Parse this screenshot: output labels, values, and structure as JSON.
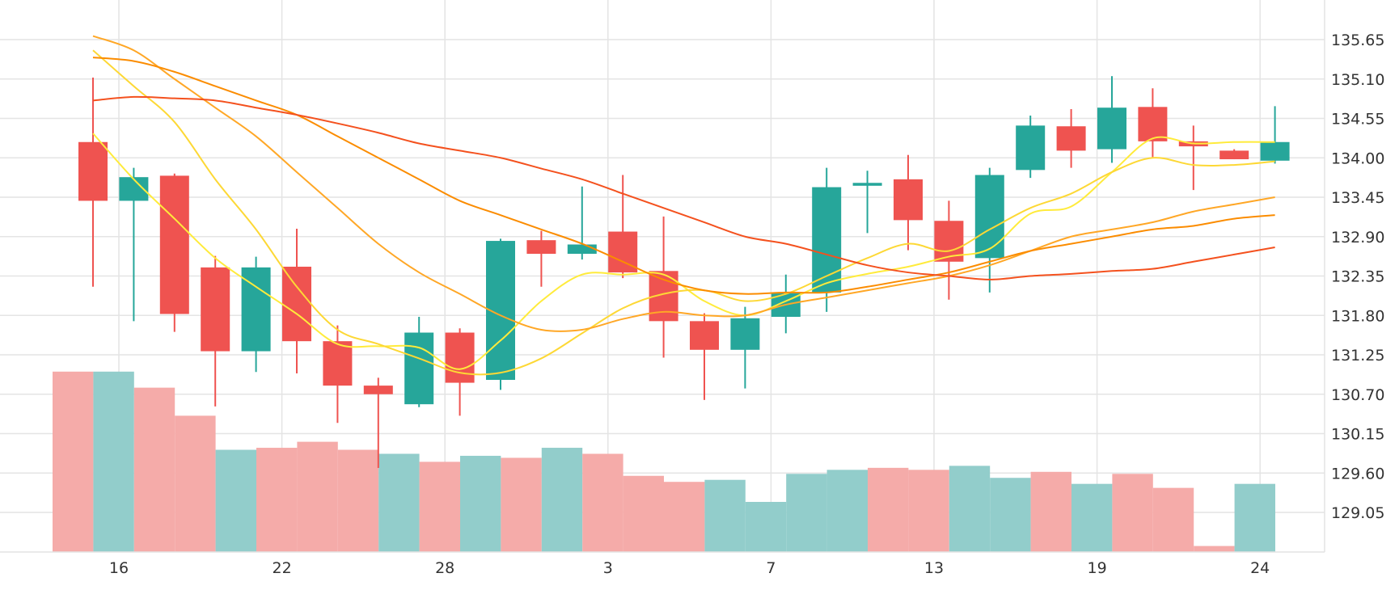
{
  "chart_data": {
    "type": "candlestick",
    "title": "",
    "xlabel": "",
    "ylabel": "",
    "ylim": [
      128.5,
      135.95
    ],
    "grid": true,
    "y_axis_side": "right",
    "y_ticks": [
      135.65,
      135.1,
      134.55,
      134.0,
      133.45,
      132.9,
      132.35,
      131.8,
      131.25,
      130.7,
      130.15,
      129.6,
      129.05
    ],
    "y_tick_labels": [
      "135.65",
      "135.10",
      "134.55",
      "134.00",
      "133.45",
      "132.90",
      "132.35",
      "131.80",
      "131.25",
      "130.70",
      "130.15",
      "129.60",
      "129.05"
    ],
    "x_tick_labels": [
      {
        "label": "16",
        "index": 1
      },
      {
        "label": "22",
        "index": 5
      },
      {
        "label": "28",
        "index": 9
      },
      {
        "label": "3",
        "index": 13
      },
      {
        "label": "7",
        "index": 17
      },
      {
        "label": "13",
        "index": 21
      },
      {
        "label": "19",
        "index": 25
      },
      {
        "label": "24",
        "index": 29
      }
    ],
    "colors": {
      "up": "#26a69a",
      "down": "#ef5350",
      "volume_up": "#92cdcb",
      "volume_down": "#f5aba9",
      "grid": "#e4e4e4"
    },
    "candles": [
      {
        "open": 134.22,
        "high": 135.12,
        "low": 132.2,
        "close": 133.4
      },
      {
        "open": 133.4,
        "high": 133.86,
        "low": 131.72,
        "close": 133.73
      },
      {
        "open": 133.75,
        "high": 133.78,
        "low": 131.57,
        "close": 131.82
      },
      {
        "open": 132.47,
        "high": 132.63,
        "low": 130.53,
        "close": 131.3
      },
      {
        "open": 131.3,
        "high": 132.62,
        "low": 131.01,
        "close": 132.47
      },
      {
        "open": 132.48,
        "high": 133.01,
        "low": 130.99,
        "close": 131.44
      },
      {
        "open": 131.44,
        "high": 131.66,
        "low": 130.3,
        "close": 130.82
      },
      {
        "open": 130.82,
        "high": 130.93,
        "low": 129.67,
        "close": 130.7
      },
      {
        "open": 130.56,
        "high": 131.78,
        "low": 130.52,
        "close": 131.56
      },
      {
        "open": 131.56,
        "high": 131.62,
        "low": 130.4,
        "close": 130.86
      },
      {
        "open": 130.9,
        "high": 132.87,
        "low": 130.76,
        "close": 132.84
      },
      {
        "open": 132.85,
        "high": 132.98,
        "low": 132.2,
        "close": 132.66
      },
      {
        "open": 132.66,
        "high": 133.6,
        "low": 132.58,
        "close": 132.79
      },
      {
        "open": 132.97,
        "high": 133.76,
        "low": 132.32,
        "close": 132.4
      },
      {
        "open": 132.42,
        "high": 133.18,
        "low": 131.21,
        "close": 131.72
      },
      {
        "open": 131.72,
        "high": 131.83,
        "low": 130.62,
        "close": 131.32
      },
      {
        "open": 131.32,
        "high": 131.92,
        "low": 130.78,
        "close": 131.76
      },
      {
        "open": 131.78,
        "high": 132.37,
        "low": 131.55,
        "close": 132.11
      },
      {
        "open": 132.12,
        "high": 133.86,
        "low": 131.85,
        "close": 133.59
      },
      {
        "open": 133.61,
        "high": 133.82,
        "low": 132.95,
        "close": 133.65
      },
      {
        "open": 133.7,
        "high": 134.04,
        "low": 132.71,
        "close": 133.13
      },
      {
        "open": 133.12,
        "high": 133.4,
        "low": 132.02,
        "close": 132.55
      },
      {
        "open": 132.6,
        "high": 133.86,
        "low": 132.12,
        "close": 133.76
      },
      {
        "open": 133.83,
        "high": 134.59,
        "low": 133.72,
        "close": 134.45
      },
      {
        "open": 134.44,
        "high": 134.68,
        "low": 133.86,
        "close": 134.1
      },
      {
        "open": 134.12,
        "high": 135.14,
        "low": 133.93,
        "close": 134.7
      },
      {
        "open": 134.71,
        "high": 134.97,
        "low": 134.01,
        "close": 134.23
      },
      {
        "open": 134.23,
        "high": 134.45,
        "low": 133.55,
        "close": 134.16
      },
      {
        "open": 134.1,
        "high": 134.12,
        "low": 133.98,
        "close": 133.98
      },
      {
        "open": 133.96,
        "high": 134.72,
        "low": 133.92,
        "close": 134.22
      }
    ],
    "volume_series": {
      "values": [
        0.9,
        0.9,
        0.82,
        0.68,
        0.51,
        0.52,
        0.55,
        0.51,
        0.49,
        0.45,
        0.48,
        0.47,
        0.52,
        0.49,
        0.38,
        0.35,
        0.36,
        0.25,
        0.39,
        0.41,
        0.42,
        0.41,
        0.43,
        0.37,
        0.4,
        0.34,
        0.39,
        0.32,
        0.03,
        0.34
      ],
      "max_label": "",
      "note_colors": "volume bars colored by candle direction"
    },
    "ma_series": [
      {
        "color": "#ffeb3b",
        "values": [
          134.34,
          133.7,
          133.15,
          132.6,
          132.2,
          131.82,
          131.4,
          131.37,
          131.35,
          131.05,
          131.45,
          132.0,
          132.37,
          132.37,
          132.37,
          132.0,
          131.8,
          132.0,
          132.25,
          132.38,
          132.48,
          132.62,
          132.73,
          133.22,
          133.32,
          133.8,
          134.27,
          134.2,
          134.22,
          134.22
        ]
      },
      {
        "color": "#fdd835",
        "values": [
          135.5,
          135.0,
          134.5,
          133.7,
          133.0,
          132.2,
          131.6,
          131.4,
          131.2,
          131.0,
          131.0,
          131.2,
          131.55,
          131.9,
          132.1,
          132.15,
          132.0,
          132.1,
          132.35,
          132.6,
          132.8,
          132.7,
          133.0,
          133.3,
          133.5,
          133.8,
          134.0,
          133.9,
          133.9,
          133.95
        ]
      },
      {
        "color": "#ffa726",
        "values": [
          135.7,
          135.5,
          135.1,
          134.7,
          134.3,
          133.8,
          133.3,
          132.8,
          132.4,
          132.1,
          131.8,
          131.6,
          131.6,
          131.75,
          131.85,
          131.8,
          131.8,
          131.95,
          132.05,
          132.15,
          132.25,
          132.35,
          132.5,
          132.7,
          132.9,
          133.0,
          133.1,
          133.25,
          133.35,
          133.45
        ]
      },
      {
        "color": "#fb8c00",
        "values": [
          135.4,
          135.35,
          135.2,
          135.0,
          134.8,
          134.6,
          134.3,
          134.0,
          133.7,
          133.4,
          133.2,
          133.0,
          132.8,
          132.55,
          132.3,
          132.15,
          132.1,
          132.12,
          132.12,
          132.2,
          132.3,
          132.4,
          132.55,
          132.7,
          132.8,
          132.9,
          133.0,
          133.05,
          133.15,
          133.2
        ]
      },
      {
        "color": "#f4511e",
        "values": [
          134.8,
          134.85,
          134.83,
          134.8,
          134.7,
          134.6,
          134.48,
          134.35,
          134.2,
          134.1,
          134.0,
          133.85,
          133.7,
          133.5,
          133.3,
          133.1,
          132.9,
          132.8,
          132.65,
          132.5,
          132.4,
          132.35,
          132.3,
          132.35,
          132.38,
          132.42,
          132.45,
          132.55,
          132.65,
          132.75
        ]
      }
    ]
  }
}
